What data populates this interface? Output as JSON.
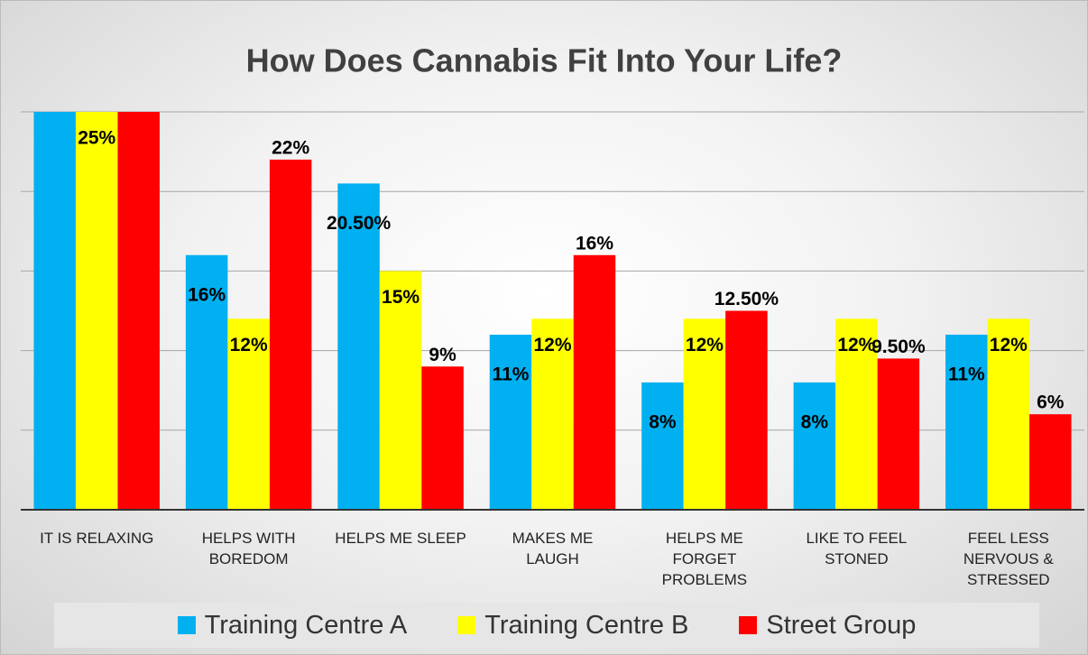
{
  "chart_data": {
    "type": "bar",
    "title": "How Does Cannabis Fit Into Your Life?",
    "categories": [
      "IT IS RELAXING",
      "HELPS WITH\nBOREDOM",
      "HELPS ME SLEEP",
      "MAKES ME\nLAUGH",
      "HELPS ME\nFORGET\nPROBLEMS",
      "LIKE TO FEEL\nSTONED",
      "FEEL LESS\nNERVOUS &\nSTRESSED"
    ],
    "series": [
      {
        "name": "Training Centre A",
        "color": "#00b0f0",
        "values": [
          25,
          16,
          20.5,
          11,
          8,
          8,
          11
        ],
        "value_labels": [
          null,
          "16%",
          "20.50%",
          "11%",
          "8%",
          "8%",
          "11%"
        ]
      },
      {
        "name": "Training Centre B",
        "color": "#ffff00",
        "values": [
          25,
          12,
          15,
          12,
          12,
          12,
          12
        ],
        "value_labels": [
          "25%",
          "12%",
          "15%",
          "12%",
          "12%",
          "12%",
          "12%"
        ]
      },
      {
        "name": "Street Group",
        "color": "#ff0000",
        "values": [
          25,
          22,
          9,
          16,
          12.5,
          9.5,
          6
        ],
        "value_labels": [
          null,
          "22%",
          "9%",
          "16%",
          "12.50%",
          "9.50%",
          "6%"
        ]
      }
    ],
    "ylim": [
      0,
      25
    ],
    "yticks": [
      0,
      5,
      10,
      15,
      20,
      25
    ],
    "grid": true,
    "legend": "bottom"
  }
}
